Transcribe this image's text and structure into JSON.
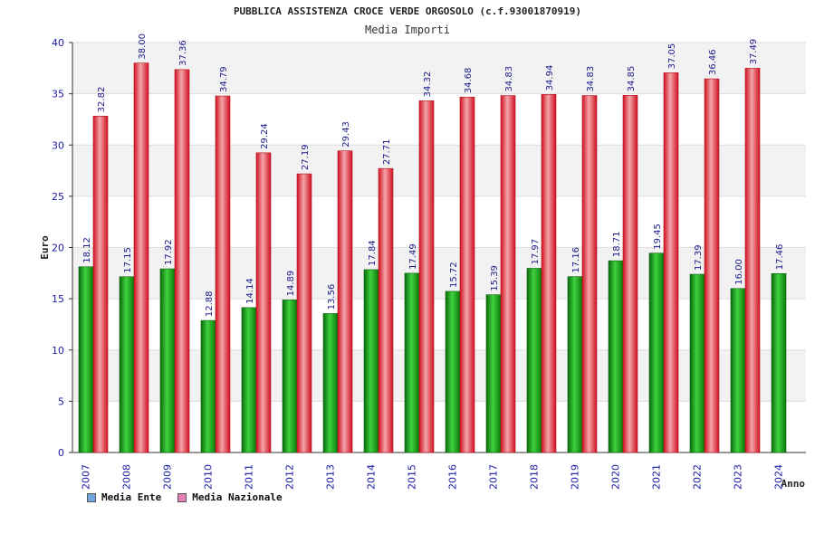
{
  "title": "PUBBLICA ASSISTENZA CROCE VERDE ORGOSOLO (c.f.93001870919)",
  "subtitle": "Media Importi",
  "legend": [
    {
      "label": "Media Ente",
      "color": "#6fa8dc"
    },
    {
      "label": "Media Nazionale",
      "color": "#e07fb8"
    }
  ],
  "chart_data": {
    "type": "bar",
    "title": "PUBBLICA ASSISTENZA CROCE VERDE ORGOSOLO (c.f.93001870919)",
    "subtitle": "Media Importi",
    "xlabel": "Anno",
    "ylabel": "Euro",
    "ylim": [
      0,
      40
    ],
    "yticks": [
      0,
      5,
      10,
      15,
      20,
      25,
      30,
      35,
      40
    ],
    "categories": [
      "2007",
      "2008",
      "2009",
      "2010",
      "2011",
      "2012",
      "2013",
      "2014",
      "2015",
      "2016",
      "2017",
      "2018",
      "2019",
      "2020",
      "2021",
      "2022",
      "2023",
      "2024"
    ],
    "series": [
      {
        "name": "Media Ente",
        "color": "#1a9e1a",
        "values": [
          18.12,
          17.15,
          17.92,
          12.88,
          14.14,
          14.89,
          13.56,
          17.84,
          17.49,
          15.72,
          15.39,
          17.97,
          17.16,
          18.71,
          19.45,
          17.39,
          16.0,
          17.46
        ],
        "labels": [
          "18.12",
          "17.15",
          "17.92",
          "12.88",
          "14.14",
          "14.89",
          "13.56",
          "17.84",
          "17.49",
          "15.72",
          "15.39",
          "17.97",
          "17.16",
          "18.71",
          "19.45",
          "17.39",
          "16.00",
          "17.46"
        ]
      },
      {
        "name": "Media Nazionale",
        "color": "#e2222e",
        "values": [
          32.82,
          38.0,
          37.36,
          34.79,
          29.24,
          27.19,
          29.43,
          27.71,
          34.32,
          34.68,
          34.83,
          34.94,
          34.83,
          34.85,
          37.05,
          36.46,
          37.49,
          null
        ],
        "labels": [
          "32.82",
          "38.00",
          "37.36",
          "34.79",
          "29.24",
          "27.19",
          "29.43",
          "27.71",
          "34.32",
          "34.68",
          "34.83",
          "34.94",
          "34.83",
          "34.85",
          "37.05",
          "36.46",
          "37.49",
          null
        ]
      }
    ],
    "grid": true,
    "legend_position": "bottom-left"
  }
}
